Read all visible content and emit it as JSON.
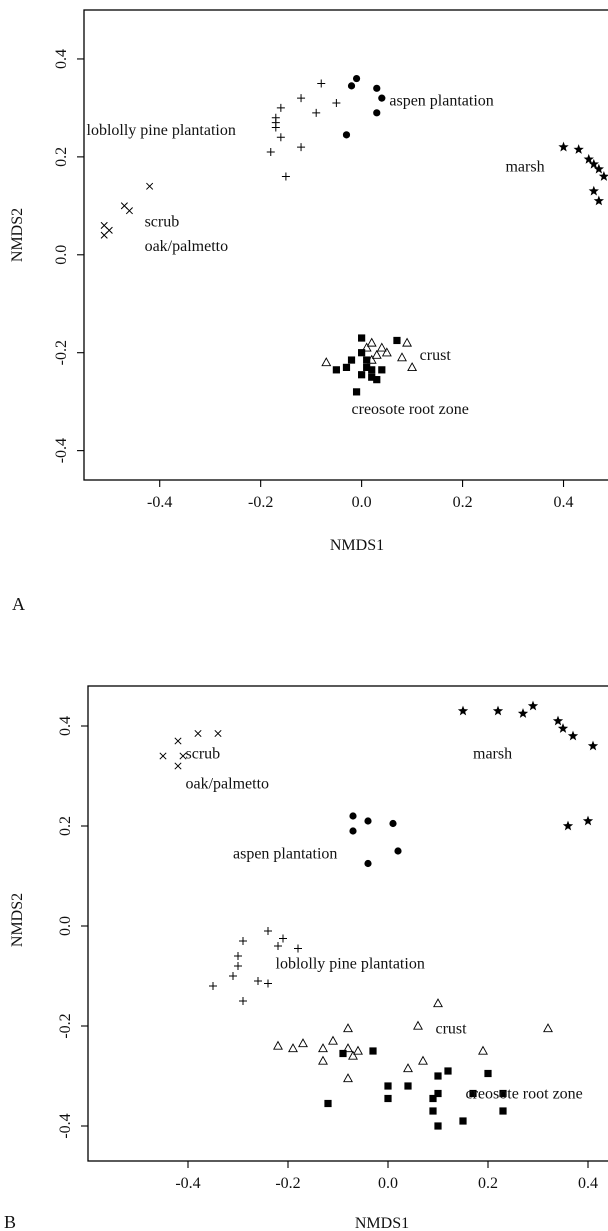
{
  "chart_data": [
    {
      "type": "scatter",
      "panel_label": "A",
      "xlabel": "NMDS1",
      "ylabel": "NMDS2",
      "xlim": [
        -0.55,
        0.5
      ],
      "ylim": [
        -0.46,
        0.5
      ],
      "xticks": [
        -0.4,
        -0.2,
        0.0,
        0.2,
        0.4
      ],
      "xtick_labels": [
        "-0.4",
        "-0.2",
        "0.0",
        "0.2",
        "0.4"
      ],
      "yticks": [
        -0.4,
        -0.2,
        0.0,
        0.2,
        0.4
      ],
      "ytick_labels": [
        "-0.4",
        "-0.2",
        "0.0",
        "0.2",
        "0.4"
      ],
      "series": [
        {
          "name": "scrub oak/palmetto",
          "marker": "x",
          "points": [
            [
              -0.42,
              0.14
            ],
            [
              -0.47,
              0.1
            ],
            [
              -0.46,
              0.09
            ],
            [
              -0.51,
              0.06
            ],
            [
              -0.5,
              0.05
            ],
            [
              -0.51,
              0.04
            ]
          ]
        },
        {
          "name": "loblolly pine plantation",
          "marker": "plus",
          "points": [
            [
              -0.08,
              0.35
            ],
            [
              -0.12,
              0.32
            ],
            [
              -0.05,
              0.31
            ],
            [
              -0.16,
              0.3
            ],
            [
              -0.09,
              0.29
            ],
            [
              -0.17,
              0.28
            ],
            [
              -0.17,
              0.27
            ],
            [
              -0.17,
              0.26
            ],
            [
              -0.16,
              0.24
            ],
            [
              -0.12,
              0.22
            ],
            [
              -0.18,
              0.21
            ],
            [
              -0.15,
              0.16
            ]
          ]
        },
        {
          "name": "aspen plantation",
          "marker": "circle",
          "points": [
            [
              -0.01,
              0.36
            ],
            [
              -0.02,
              0.345
            ],
            [
              0.03,
              0.34
            ],
            [
              0.04,
              0.32
            ],
            [
              0.03,
              0.29
            ],
            [
              -0.03,
              0.245
            ]
          ]
        },
        {
          "name": "marsh",
          "marker": "star",
          "points": [
            [
              0.4,
              0.22
            ],
            [
              0.43,
              0.215
            ],
            [
              0.45,
              0.195
            ],
            [
              0.46,
              0.185
            ],
            [
              0.47,
              0.175
            ],
            [
              0.48,
              0.16
            ],
            [
              0.46,
              0.13
            ],
            [
              0.47,
              0.11
            ]
          ]
        },
        {
          "name": "crust",
          "marker": "triangle",
          "points": [
            [
              -0.07,
              -0.22
            ],
            [
              0.02,
              -0.18
            ],
            [
              0.04,
              -0.19
            ],
            [
              0.08,
              -0.21
            ],
            [
              0.09,
              -0.18
            ],
            [
              0.1,
              -0.23
            ],
            [
              0.03,
              -0.205
            ],
            [
              0.05,
              -0.2
            ],
            [
              0.01,
              -0.19
            ],
            [
              0.02,
              -0.215
            ]
          ]
        },
        {
          "name": "creosote root zone",
          "marker": "square",
          "points": [
            [
              0.0,
              -0.17
            ],
            [
              0.07,
              -0.175
            ],
            [
              0.0,
              -0.2
            ],
            [
              0.01,
              -0.215
            ],
            [
              -0.02,
              -0.215
            ],
            [
              0.01,
              -0.23
            ],
            [
              -0.03,
              -0.23
            ],
            [
              0.02,
              -0.235
            ],
            [
              0.04,
              -0.235
            ],
            [
              0.0,
              -0.245
            ],
            [
              0.02,
              -0.25
            ],
            [
              -0.01,
              -0.28
            ],
            [
              0.03,
              -0.255
            ],
            [
              -0.05,
              -0.235
            ]
          ]
        }
      ],
      "annotations": [
        {
          "text": "scrub",
          "x": -0.43,
          "y": 0.058
        },
        {
          "text": "oak/palmetto",
          "x": -0.43,
          "y": 0.008
        },
        {
          "text": "loblolly pine plantation",
          "x": -0.545,
          "y": 0.245
        },
        {
          "text": "aspen plantation",
          "x": 0.055,
          "y": 0.305
        },
        {
          "text": "marsh",
          "x": 0.285,
          "y": 0.17
        },
        {
          "text": "crust",
          "x": 0.115,
          "y": -0.215
        },
        {
          "text": "creosote root zone",
          "x": -0.02,
          "y": -0.325
        }
      ]
    },
    {
      "type": "scatter",
      "panel_label": "B",
      "xlabel": "NMDS1",
      "ylabel": "NMDS2",
      "xlim": [
        -0.6,
        0.45
      ],
      "ylim": [
        -0.47,
        0.48
      ],
      "xticks": [
        -0.4,
        -0.2,
        0.0,
        0.2,
        0.4
      ],
      "xtick_labels": [
        "-0.4",
        "-0.2",
        "0.0",
        "0.2",
        "0.4"
      ],
      "yticks": [
        -0.4,
        -0.2,
        0.0,
        0.2,
        0.4
      ],
      "ytick_labels": [
        "-0.4",
        "-0.2",
        "0.0",
        "0.2",
        "0.4"
      ],
      "series": [
        {
          "name": "scrub oak/palmetto",
          "marker": "x",
          "points": [
            [
              -0.38,
              0.385
            ],
            [
              -0.34,
              0.385
            ],
            [
              -0.42,
              0.37
            ],
            [
              -0.45,
              0.34
            ],
            [
              -0.41,
              0.34
            ],
            [
              -0.42,
              0.32
            ]
          ]
        },
        {
          "name": "aspen plantation",
          "marker": "circle",
          "points": [
            [
              -0.07,
              0.22
            ],
            [
              -0.04,
              0.21
            ],
            [
              0.01,
              0.205
            ],
            [
              -0.07,
              0.19
            ],
            [
              0.02,
              0.15
            ],
            [
              -0.04,
              0.125
            ]
          ]
        },
        {
          "name": "marsh",
          "marker": "star",
          "points": [
            [
              0.15,
              0.43
            ],
            [
              0.22,
              0.43
            ],
            [
              0.29,
              0.44
            ],
            [
              0.27,
              0.425
            ],
            [
              0.34,
              0.41
            ],
            [
              0.35,
              0.395
            ],
            [
              0.37,
              0.38
            ],
            [
              0.41,
              0.36
            ],
            [
              0.4,
              0.21
            ],
            [
              0.36,
              0.2
            ]
          ]
        },
        {
          "name": "loblolly pine plantation",
          "marker": "plus",
          "points": [
            [
              -0.24,
              -0.01
            ],
            [
              -0.21,
              -0.025
            ],
            [
              -0.29,
              -0.03
            ],
            [
              -0.22,
              -0.04
            ],
            [
              -0.18,
              -0.045
            ],
            [
              -0.3,
              -0.06
            ],
            [
              -0.3,
              -0.08
            ],
            [
              -0.31,
              -0.1
            ],
            [
              -0.26,
              -0.11
            ],
            [
              -0.24,
              -0.115
            ],
            [
              -0.35,
              -0.12
            ],
            [
              -0.29,
              -0.15
            ]
          ]
        },
        {
          "name": "crust",
          "marker": "triangle",
          "points": [
            [
              0.1,
              -0.155
            ],
            [
              0.06,
              -0.2
            ],
            [
              0.32,
              -0.205
            ],
            [
              -0.08,
              -0.205
            ],
            [
              -0.17,
              -0.235
            ],
            [
              -0.22,
              -0.24
            ],
            [
              -0.19,
              -0.245
            ],
            [
              -0.11,
              -0.23
            ],
            [
              -0.13,
              -0.245
            ],
            [
              -0.08,
              -0.245
            ],
            [
              -0.06,
              -0.25
            ],
            [
              -0.07,
              -0.26
            ],
            [
              -0.13,
              -0.27
            ],
            [
              0.19,
              -0.25
            ],
            [
              0.07,
              -0.27
            ],
            [
              0.04,
              -0.285
            ],
            [
              -0.08,
              -0.305
            ]
          ]
        },
        {
          "name": "creosote root zone",
          "marker": "square",
          "points": [
            [
              -0.03,
              -0.25
            ],
            [
              -0.09,
              -0.255
            ],
            [
              0.0,
              -0.32
            ],
            [
              0.04,
              -0.32
            ],
            [
              0.1,
              -0.3
            ],
            [
              0.12,
              -0.29
            ],
            [
              0.2,
              -0.295
            ],
            [
              0.17,
              -0.335
            ],
            [
              0.23,
              -0.335
            ],
            [
              0.1,
              -0.335
            ],
            [
              0.0,
              -0.345
            ],
            [
              0.09,
              -0.345
            ],
            [
              -0.12,
              -0.355
            ],
            [
              0.09,
              -0.37
            ],
            [
              0.23,
              -0.37
            ],
            [
              0.15,
              -0.39
            ],
            [
              0.1,
              -0.4
            ]
          ]
        }
      ],
      "annotations": [
        {
          "text": "scrub",
          "x": -0.405,
          "y": 0.335
        },
        {
          "text": "oak/palmetto",
          "x": -0.405,
          "y": 0.275
        },
        {
          "text": "marsh",
          "x": 0.17,
          "y": 0.335
        },
        {
          "text": "aspen plantation",
          "x": -0.31,
          "y": 0.135
        },
        {
          "text": "loblolly pine plantation",
          "x": -0.225,
          "y": -0.085
        },
        {
          "text": "crust",
          "x": 0.095,
          "y": -0.215
        },
        {
          "text": "creosote root zone",
          "x": 0.155,
          "y": -0.345
        }
      ]
    }
  ]
}
